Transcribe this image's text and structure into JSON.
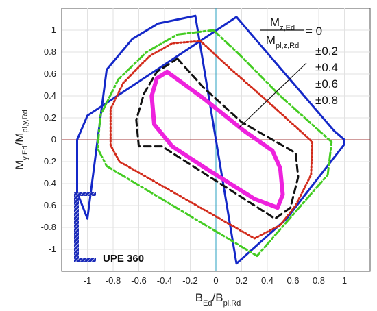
{
  "chart_data": {
    "type": "line",
    "title": "",
    "x_axis": {
      "label_main": "B",
      "label_main_sub": "Ed",
      "label_den": "B",
      "label_den_sub": "pl,Rd",
      "range": [
        -1.2,
        1.2
      ],
      "ticks": [
        "-1",
        "-0.8",
        "-0.6",
        "-0.4",
        "-0.2",
        "0",
        "0.2",
        "0.4",
        "0.6",
        "0.8",
        "1"
      ],
      "tick_values": [
        -1,
        -0.8,
        -0.6,
        -0.4,
        -0.2,
        0,
        0.2,
        0.4,
        0.6,
        0.8,
        1
      ]
    },
    "y_axis": {
      "label_main": "M",
      "label_main_sub": "y,Ed",
      "label_den": "M",
      "label_den_sub": "pl,y,Rd",
      "range": [
        -1.2,
        1.2
      ],
      "ticks": [
        "1",
        "0.8",
        "0.6",
        "0.4",
        "0.2",
        "0",
        "-0.2",
        "-0.4",
        "-0.6",
        "-0.8",
        "-1"
      ],
      "tick_values": [
        1,
        0.8,
        0.6,
        0.4,
        0.2,
        0,
        -0.2,
        -0.4,
        -0.6,
        -0.8,
        -1
      ]
    },
    "grid": true,
    "legend": {
      "placement": "top-right",
      "ratio_num": "M",
      "ratio_num_sub": "z,Ed",
      "ratio_den": "M",
      "ratio_den_sub": "pl,z,Rd",
      "entries": [
        "= 0",
        "±0.2",
        "±0.4",
        "±0.6",
        "±0.8"
      ]
    },
    "section_label": "UPE 360",
    "series": [
      {
        "value": "0",
        "color": "#1428c8",
        "dash": "",
        "x": [
          -0.16,
          0.16,
          0.55,
          1.0,
          1.0,
          0.92,
          0.16,
          -1.0,
          -1.08,
          -1.08,
          -1.0,
          -0.85,
          -0.65,
          -0.45
        ],
        "y": [
          1.13,
          -1.13,
          -0.72,
          -0.04,
          0.0,
          0.08,
          1.12,
          0.22,
          0.0,
          -0.48,
          -0.72,
          0.64,
          0.92,
          1.06
        ]
      },
      {
        "value": "±0.2",
        "color": "#44cc22",
        "dash": "12 4 3 4",
        "x": [
          -0.02,
          0.18,
          0.5,
          0.9,
          0.87,
          0.32,
          -0.85,
          -0.92,
          -0.9,
          -0.76,
          -0.54,
          -0.3
        ],
        "y": [
          1.0,
          0.78,
          0.4,
          -0.02,
          -0.32,
          -1.06,
          -0.24,
          -0.08,
          0.22,
          0.55,
          0.8,
          0.96
        ]
      },
      {
        "value": "±0.4",
        "color": "#d22a1a",
        "dash": "2 3",
        "x": [
          -0.12,
          0.12,
          0.45,
          0.75,
          0.74,
          0.62,
          0.5,
          0.3,
          -0.75,
          -0.82,
          -0.82,
          -0.72,
          -0.52,
          -0.34
        ],
        "y": [
          0.9,
          0.64,
          0.3,
          -0.02,
          -0.32,
          -0.6,
          -0.78,
          -0.9,
          -0.2,
          -0.05,
          0.28,
          0.52,
          0.76,
          0.88
        ]
      },
      {
        "value": "±0.6",
        "color": "#111111",
        "dash": "10 6",
        "x": [
          -0.3,
          -0.1,
          0.2,
          0.62,
          0.64,
          0.58,
          0.46,
          -0.42,
          -0.6,
          -0.62,
          -0.56,
          -0.46
        ],
        "y": [
          0.74,
          0.48,
          0.16,
          -0.12,
          -0.34,
          -0.62,
          -0.72,
          -0.06,
          -0.06,
          0.18,
          0.42,
          0.62
        ]
      },
      {
        "value": "±0.8",
        "color": "#ee22dd",
        "dash": "",
        "x": [
          -0.38,
          -0.1,
          0.22,
          0.44,
          0.5,
          0.52,
          0.48,
          0.3,
          -0.08,
          -0.34,
          -0.48,
          -0.5,
          -0.46
        ],
        "y": [
          0.62,
          0.38,
          0.08,
          -0.1,
          -0.26,
          -0.5,
          -0.62,
          -0.54,
          -0.26,
          -0.06,
          0.14,
          0.4,
          0.56
        ]
      }
    ]
  }
}
